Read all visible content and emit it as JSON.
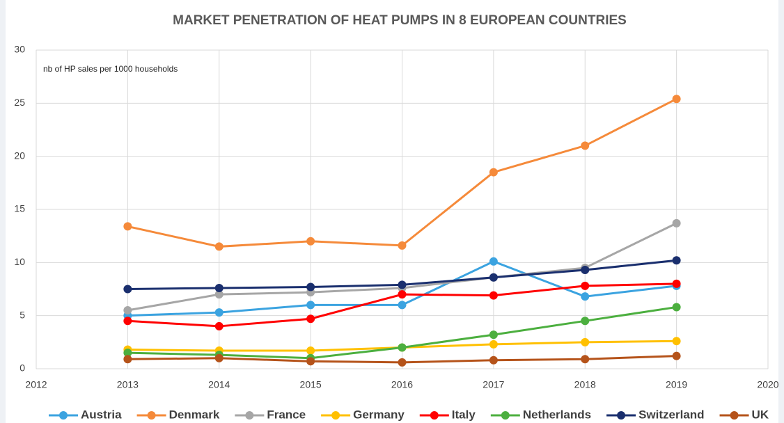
{
  "chart_data": {
    "type": "line",
    "title": "MARKET PENETRATION OF HEAT PUMPS IN 8 EUROPEAN COUNTRIES",
    "annotation": "nb of HP sales per 1000 households",
    "x": [
      2013,
      2014,
      2015,
      2016,
      2017,
      2018,
      2019
    ],
    "xlim": [
      2012,
      2020
    ],
    "xticks": [
      2012,
      2013,
      2014,
      2015,
      2016,
      2017,
      2018,
      2019,
      2020
    ],
    "ylim": [
      0,
      30
    ],
    "yticks": [
      0,
      5,
      10,
      15,
      20,
      25,
      30
    ],
    "grid": true,
    "legend": "bottom",
    "series": [
      {
        "name": "Austria",
        "color": "#3ba3e0",
        "values": [
          5.0,
          5.3,
          6.0,
          6.0,
          10.1,
          6.8,
          7.8
        ]
      },
      {
        "name": "Denmark",
        "color": "#f58a3a",
        "values": [
          13.4,
          11.5,
          12.0,
          11.6,
          18.5,
          21.0,
          25.4
        ]
      },
      {
        "name": "France",
        "color": "#a6a6a6",
        "values": [
          5.5,
          7.0,
          7.2,
          7.6,
          8.6,
          9.5,
          13.7
        ]
      },
      {
        "name": "Germany",
        "color": "#ffc000",
        "values": [
          1.8,
          1.7,
          1.7,
          2.0,
          2.3,
          2.5,
          2.6
        ]
      },
      {
        "name": "Italy",
        "color": "#ff0000",
        "values": [
          4.5,
          4.0,
          4.7,
          7.0,
          6.9,
          7.8,
          8.0
        ]
      },
      {
        "name": "Netherlands",
        "color": "#4caf3f",
        "values": [
          1.5,
          1.3,
          1.0,
          2.0,
          3.2,
          4.5,
          5.8
        ]
      },
      {
        "name": "Switzerland",
        "color": "#1a2f6e",
        "values": [
          7.5,
          7.6,
          7.7,
          7.9,
          8.6,
          9.3,
          10.2
        ]
      },
      {
        "name": "UK",
        "color": "#b5531a",
        "values": [
          0.9,
          1.0,
          0.7,
          0.6,
          0.8,
          0.9,
          1.2
        ]
      }
    ]
  }
}
